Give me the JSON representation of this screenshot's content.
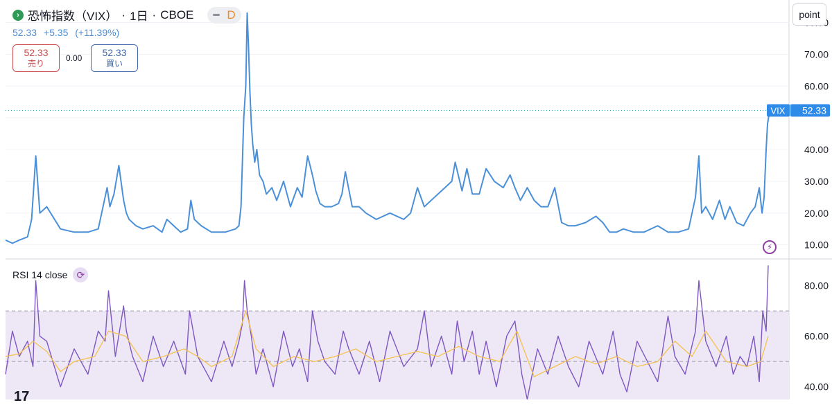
{
  "header": {
    "symbol_name": "恐怖指数（VIX）",
    "interval": "1日",
    "exchange": "CBOE",
    "pill_minus": "−",
    "pill_letter": "D",
    "logo_icon": "arrow-right-icon"
  },
  "quote": {
    "price": "52.33",
    "change": "+5.35",
    "change_pct": "(+11.39%)",
    "color": "#4c8dd6"
  },
  "trade": {
    "sell_price": "52.33",
    "sell_label": "売り",
    "spread": "0.00",
    "buy_price": "52.33",
    "buy_label": "買い"
  },
  "toolbar": {
    "scale_button": "point"
  },
  "rsi": {
    "title": "RSI 14 close",
    "icon": "refresh-icon"
  },
  "footer": {
    "logo_text": "17"
  },
  "colors": {
    "price_line": "#4a90d9",
    "rsi_line": "#7e57c2",
    "rsi_ma": "#f5c24d",
    "band_fill": "#ede7f6",
    "label_bg": "#2f8be8"
  },
  "chart_data": [
    {
      "type": "line",
      "series": [
        {
          "name": "VIX",
          "x": [
            0,
            10,
            20,
            32,
            38,
            44,
            50,
            60,
            80,
            100,
            120,
            135,
            142,
            148,
            152,
            158,
            165,
            172,
            176,
            180,
            190,
            200,
            215,
            228,
            235,
            245,
            255,
            265,
            270,
            275,
            285,
            300,
            320,
            335,
            340,
            343,
            347,
            350,
            352,
            354,
            356,
            358,
            360,
            363,
            366,
            370,
            375,
            380,
            388,
            395,
            405,
            415,
            425,
            432,
            440,
            447,
            452,
            458,
            465,
            475,
            485,
            490,
            495,
            505,
            515,
            525,
            540,
            560,
            580,
            590,
            600,
            610,
            625,
            640,
            650,
            655,
            665,
            672,
            680,
            690,
            700,
            712,
            725,
            735,
            742,
            750,
            760,
            770,
            780,
            790,
            800,
            810,
            820,
            830,
            845,
            860,
            870,
            880,
            890,
            900,
            915,
            930,
            950,
            965,
            980,
            995,
            1005,
            1010,
            1014,
            1020,
            1030,
            1040,
            1048,
            1055,
            1065,
            1075,
            1085,
            1092,
            1098,
            1102,
            1105,
            1108,
            1110,
            1113
          ],
          "values": [
            11.5,
            10.5,
            11.5,
            12.5,
            18,
            38,
            20,
            22,
            15,
            14,
            14,
            15,
            22,
            28,
            22,
            26,
            35,
            24,
            20,
            18,
            16,
            15,
            16,
            14,
            18,
            16,
            14,
            15,
            24,
            18,
            16,
            14,
            14,
            15,
            16,
            22,
            50,
            60,
            83,
            72,
            58,
            48,
            42,
            36,
            40,
            32,
            30,
            26,
            28,
            24,
            30,
            22,
            28,
            25,
            38,
            32,
            27,
            23,
            22,
            22,
            23,
            26,
            33,
            22,
            22,
            20,
            18,
            20,
            18,
            20,
            28,
            22,
            25,
            28,
            30,
            36,
            27,
            34,
            26,
            26,
            34,
            30,
            28,
            32,
            28,
            24,
            28,
            24,
            22,
            22,
            28,
            17,
            16,
            16,
            17,
            19,
            17,
            14,
            14,
            15,
            14,
            14,
            16,
            14,
            14,
            15,
            25,
            38,
            20,
            22,
            18,
            24,
            18,
            22,
            17,
            16,
            20,
            22,
            28,
            20,
            25,
            40,
            48,
            52.33
          ]
        }
      ],
      "xlabel": "",
      "ylabel": "",
      "ylim": [
        6,
        86
      ],
      "yticks": [
        "80.00",
        "70.00",
        "60.00",
        "50.00",
        "40.00",
        "30.00",
        "20.00",
        "10.00"
      ],
      "last_value": 52.33,
      "last_label": "VIX",
      "last_value_text": "52.33",
      "grid": true
    },
    {
      "type": "line",
      "title": "RSI 14 close",
      "series": [
        {
          "name": "RSI",
          "x": [
            0,
            10,
            20,
            32,
            40,
            44,
            50,
            60,
            80,
            100,
            120,
            135,
            145,
            150,
            160,
            172,
            176,
            185,
            200,
            215,
            230,
            245,
            262,
            268,
            280,
            300,
            318,
            330,
            340,
            345,
            348,
            352,
            358,
            365,
            375,
            390,
            405,
            418,
            428,
            440,
            447,
            455,
            465,
            480,
            492,
            500,
            515,
            530,
            545,
            560,
            580,
            600,
            610,
            620,
            635,
            650,
            658,
            668,
            680,
            690,
            700,
            715,
            730,
            742,
            752,
            760,
            765,
            775,
            790,
            805,
            820,
            835,
            850,
            870,
            885,
            895,
            905,
            920,
            935,
            950,
            965,
            975,
            990,
            1005,
            1010,
            1020,
            1035,
            1050,
            1060,
            1070,
            1080,
            1090,
            1098,
            1103,
            1108,
            1111
          ],
          "values": [
            45,
            62,
            52,
            58,
            48,
            82,
            60,
            58,
            40,
            55,
            45,
            62,
            58,
            78,
            52,
            72,
            62,
            52,
            42,
            60,
            48,
            58,
            45,
            70,
            52,
            42,
            58,
            48,
            58,
            65,
            82,
            70,
            60,
            45,
            55,
            40,
            62,
            48,
            55,
            42,
            70,
            58,
            50,
            45,
            62,
            55,
            45,
            58,
            42,
            62,
            48,
            55,
            70,
            48,
            60,
            45,
            66,
            50,
            62,
            45,
            58,
            40,
            60,
            66,
            45,
            35,
            42,
            55,
            45,
            60,
            48,
            40,
            58,
            45,
            62,
            45,
            38,
            58,
            50,
            42,
            68,
            52,
            45,
            62,
            82,
            58,
            48,
            60,
            45,
            52,
            48,
            60,
            42,
            70,
            62,
            88
          ]
        },
        {
          "name": "RSI MA",
          "x": [
            0,
            20,
            40,
            60,
            80,
            100,
            130,
            150,
            175,
            200,
            230,
            260,
            280,
            300,
            330,
            350,
            365,
            390,
            420,
            450,
            480,
            510,
            540,
            570,
            600,
            630,
            660,
            690,
            720,
            745,
            770,
            800,
            830,
            860,
            890,
            920,
            950,
            975,
            1000,
            1020,
            1050,
            1080,
            1100,
            1111
          ],
          "values": [
            52,
            53,
            58,
            54,
            46,
            50,
            52,
            62,
            60,
            50,
            52,
            55,
            52,
            48,
            52,
            70,
            55,
            48,
            52,
            50,
            52,
            55,
            50,
            52,
            54,
            52,
            56,
            52,
            50,
            62,
            44,
            48,
            52,
            49,
            52,
            48,
            50,
            58,
            52,
            62,
            50,
            48,
            50,
            60
          ]
        }
      ],
      "ylim": [
        35,
        90
      ],
      "yticks": [
        "80.00",
        "60.00",
        "40.00"
      ],
      "bands": [
        70,
        50,
        30
      ],
      "grid": true
    }
  ]
}
